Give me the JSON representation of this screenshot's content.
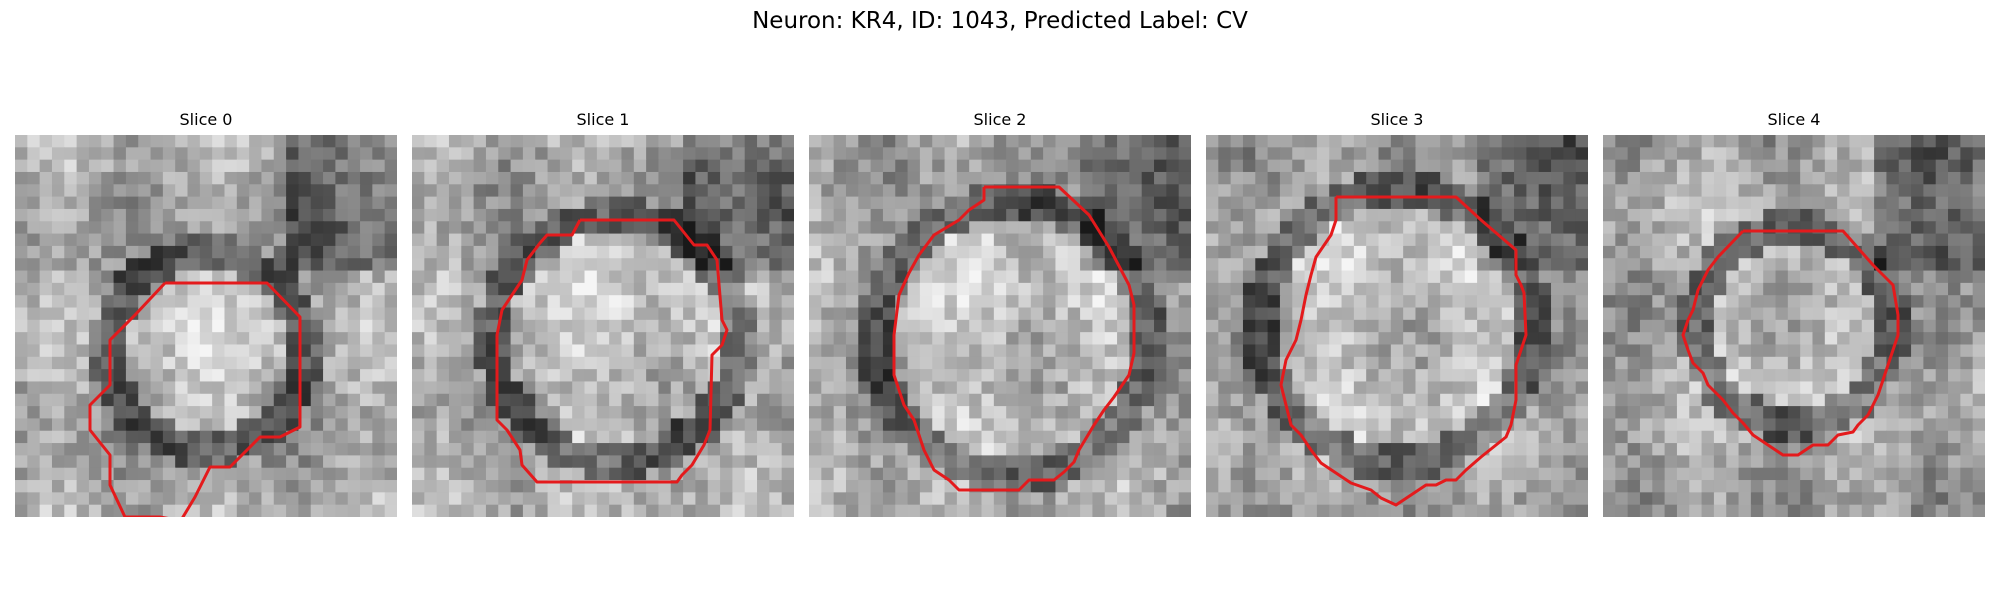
{
  "figure": {
    "title": "Neuron: KR4, ID: 1043, Predicted Label: CV",
    "contour_color": "#e41a1c",
    "colormap": "grayscale",
    "panels": [
      {
        "label": "Slice 0"
      },
      {
        "label": "Slice 1"
      },
      {
        "label": "Slice 2"
      },
      {
        "label": "Slice 3"
      },
      {
        "label": "Slice 4"
      }
    ]
  }
}
